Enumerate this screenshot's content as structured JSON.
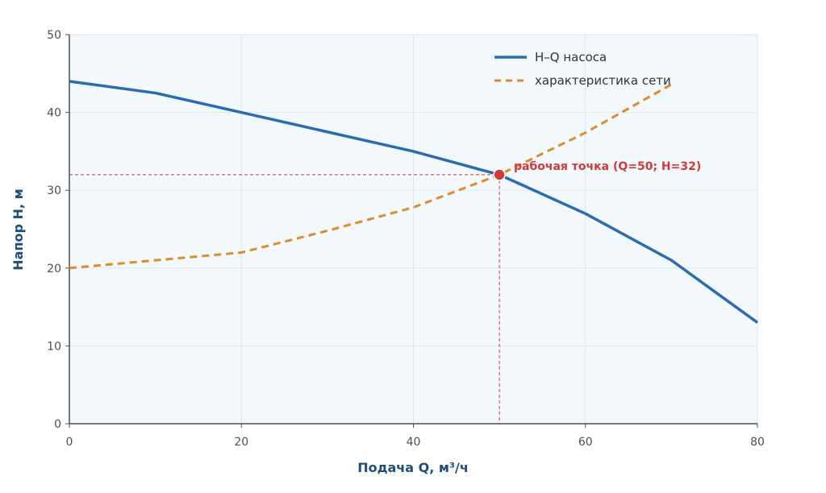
{
  "chart_data": {
    "type": "line",
    "xlabel": "Подача Q, м³/ч",
    "ylabel": "Напор H, м",
    "xlim": [
      0,
      80
    ],
    "ylim": [
      0,
      50
    ],
    "xticks": [
      0,
      20,
      40,
      60,
      80
    ],
    "yticks": [
      0,
      10,
      20,
      30,
      40,
      50
    ],
    "xtick_labels": [
      "0",
      "20",
      "40",
      "60",
      "80"
    ],
    "ytick_labels": [
      "0",
      "10",
      "20",
      "30",
      "40",
      "50"
    ],
    "grid": true,
    "legend_position": "top-right",
    "series": [
      {
        "name": "H–Q насоса",
        "style": "solid",
        "color": "#2b6cb0",
        "x": [
          0,
          10,
          20,
          30,
          40,
          50,
          60,
          70,
          80
        ],
        "y": [
          44,
          42.5,
          40,
          37.5,
          35,
          32,
          27,
          21,
          13
        ]
      },
      {
        "name": "характеристика сети",
        "style": "dashed",
        "color": "#e08a2a",
        "x": [
          0,
          10,
          20,
          30,
          40,
          50,
          60,
          70
        ],
        "y": [
          20,
          21,
          22,
          24.8,
          27.8,
          32,
          37.4,
          43.6
        ]
      }
    ],
    "operating_point": {
      "x": 50,
      "y": 32,
      "label": "рабочая точка (Q=50; H=32)",
      "color": "#d13a3a"
    }
  }
}
